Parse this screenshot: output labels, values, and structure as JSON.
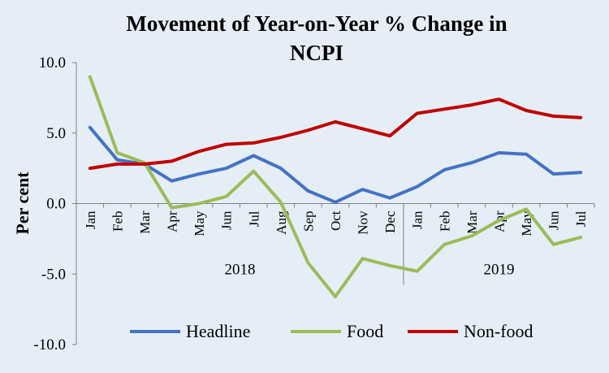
{
  "chart_data": {
    "type": "line",
    "title": "Movement of Year-on-Year % Change in NCPI",
    "title_lines": [
      "Movement of Year-on-Year % Change in",
      "NCPI"
    ],
    "ylabel": "Per cent",
    "xlabel": "",
    "ylim": [
      -10,
      10
    ],
    "yticks": [
      "10.0",
      "5.0",
      "0.0",
      "-5.0",
      "-10.0"
    ],
    "ytick_values": [
      10,
      5,
      0,
      -5,
      -10
    ],
    "categories": [
      "Jan",
      "Feb",
      "Mar",
      "Apr",
      "May",
      "Jun",
      "Jul",
      "Aug",
      "Sep",
      "Oct",
      "Nov",
      "Dec",
      "Jan",
      "Feb",
      "Mar",
      "Apr",
      "May",
      "Jun",
      "Jul"
    ],
    "year_groups": [
      {
        "label": "2018",
        "start": 0,
        "end": 11
      },
      {
        "label": "2019",
        "start": 12,
        "end": 18
      }
    ],
    "legend_position": "bottom",
    "grid": false,
    "series": [
      {
        "name": "Headline",
        "color": "#4472C4",
        "values": [
          5.4,
          3.1,
          2.8,
          1.6,
          2.1,
          2.5,
          3.4,
          2.5,
          0.9,
          0.1,
          1.0,
          0.4,
          1.2,
          2.4,
          2.9,
          3.6,
          3.5,
          2.1,
          2.2
        ]
      },
      {
        "name": "Food",
        "color": "#9BBB59",
        "values": [
          9.0,
          3.6,
          2.9,
          -0.3,
          0.0,
          0.5,
          2.3,
          0.1,
          -4.2,
          -6.6,
          -3.9,
          -4.4,
          -4.8,
          -2.9,
          -2.3,
          -1.2,
          -0.4,
          -2.9,
          -2.4
        ]
      },
      {
        "name": "Non-food",
        "color": "#C00000",
        "values": [
          2.5,
          2.8,
          2.8,
          3.0,
          3.7,
          4.2,
          4.3,
          4.7,
          5.2,
          5.8,
          5.3,
          4.8,
          6.4,
          6.7,
          7.0,
          7.4,
          6.6,
          6.2,
          6.1
        ]
      }
    ]
  }
}
